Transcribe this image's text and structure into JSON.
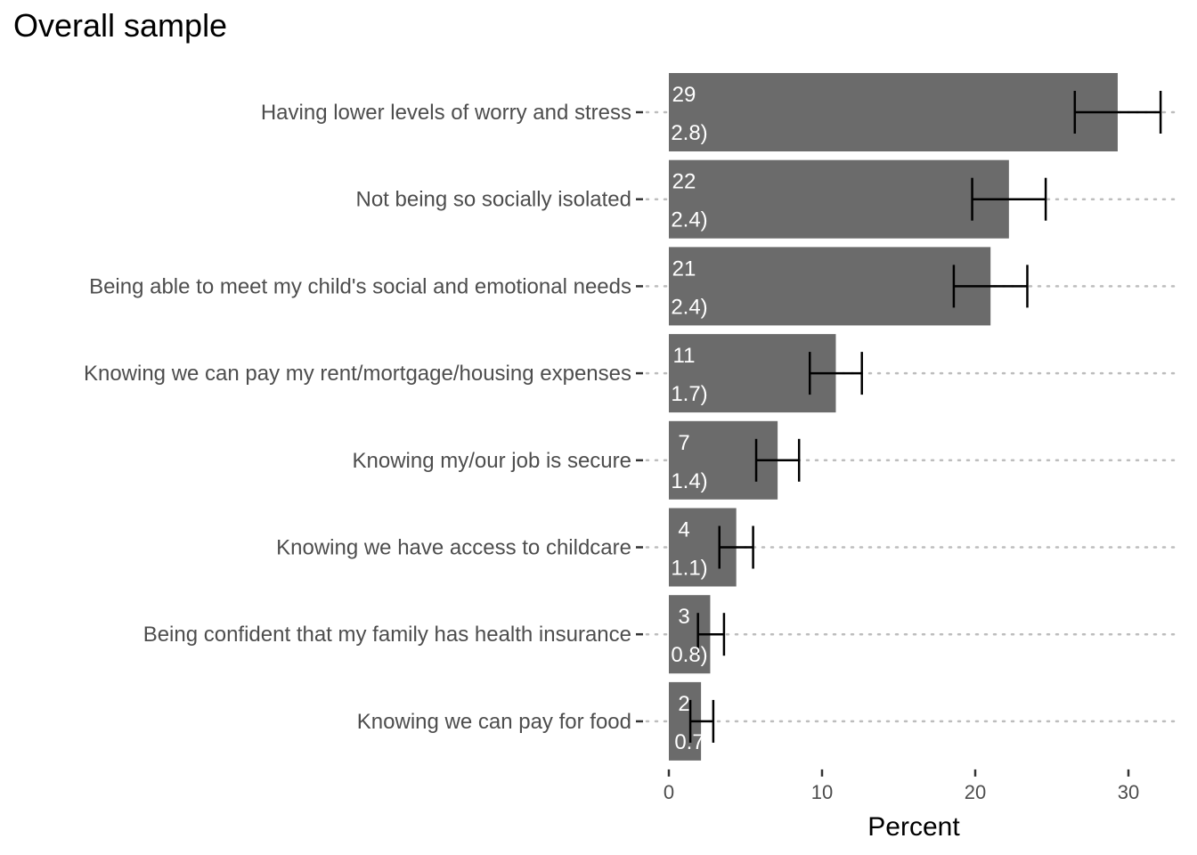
{
  "chart_data": {
    "type": "bar",
    "orientation": "horizontal",
    "title": "Overall sample",
    "xlabel": "Percent",
    "ylabel": "",
    "xlim": [
      0,
      33.5
    ],
    "x_ticks": [
      0,
      10,
      20,
      30
    ],
    "grid": "dotted horizontal guide lines per category",
    "legend": "none",
    "bar_color": "#6b6b6b",
    "categories": [
      "Having lower levels of worry and stress",
      "Not being so socially isolated",
      "Being able to meet my child's social and emotional needs",
      "Knowing we can pay my rent/mortgage/housing expenses",
      "Knowing my/our job is secure",
      "Knowing we have access to childcare",
      "Being confident that my family has health insurance",
      "Knowing we can pay for food"
    ],
    "values": [
      29.3,
      22.2,
      21.0,
      10.9,
      7.1,
      4.4,
      2.7,
      2.1
    ],
    "error_low": [
      26.5,
      19.8,
      18.6,
      9.2,
      5.7,
      3.3,
      1.9,
      1.4
    ],
    "error_high": [
      32.1,
      24.6,
      23.4,
      12.6,
      8.5,
      5.5,
      3.6,
      2.9
    ],
    "bar_labels": [
      [
        "29",
        "2.8)"
      ],
      [
        "22",
        "2.4)"
      ],
      [
        "21",
        "2.4)"
      ],
      [
        "11",
        "1.7)"
      ],
      [
        "7",
        "1.4)"
      ],
      [
        "4",
        "1.1)"
      ],
      [
        "3",
        "0.8)"
      ],
      [
        "2",
        "0.7"
      ]
    ]
  }
}
